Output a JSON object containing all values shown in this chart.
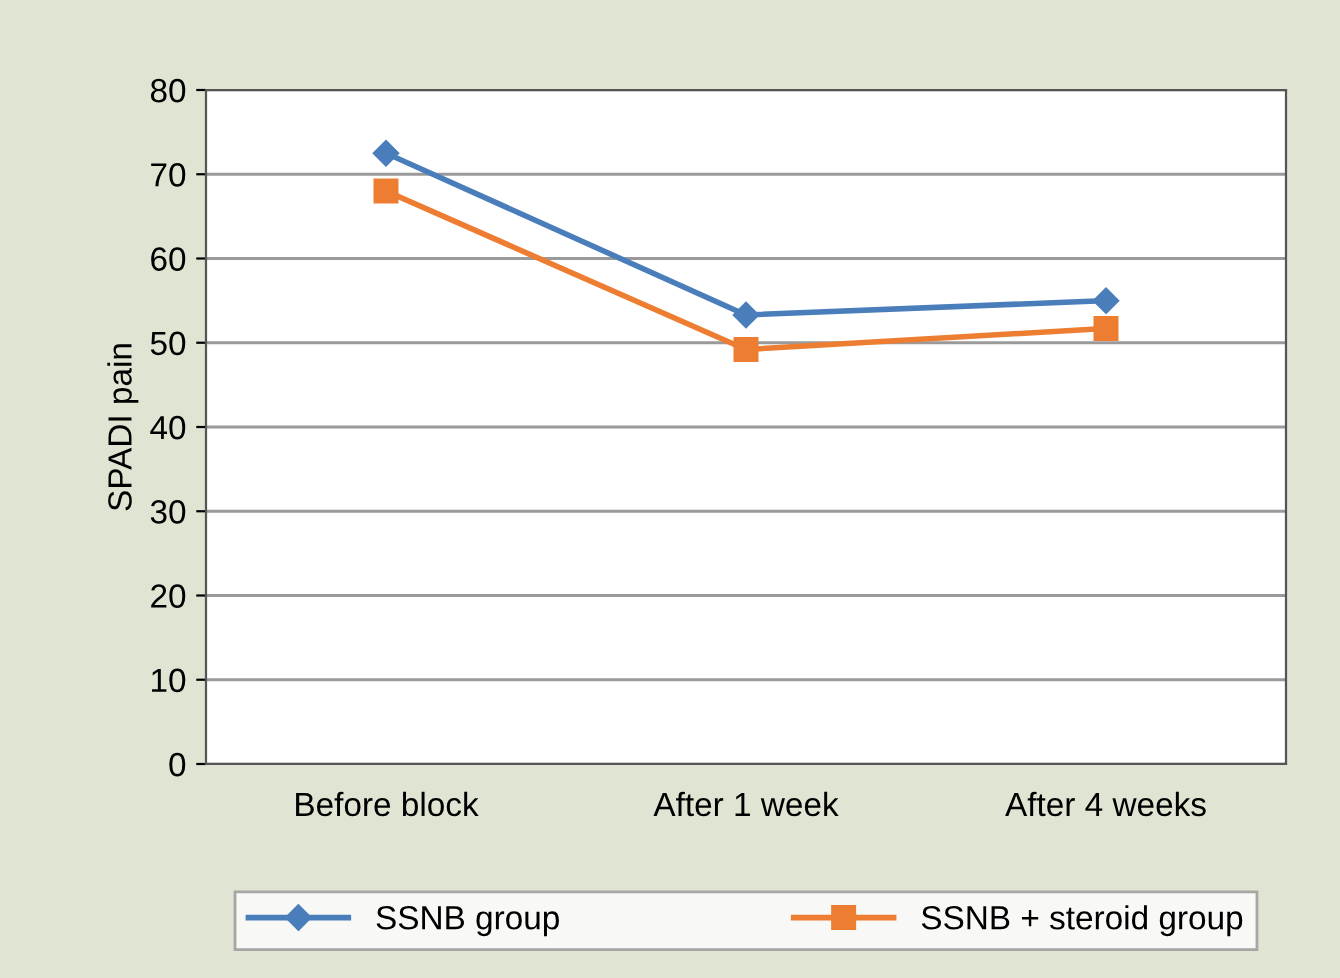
{
  "chart_data": {
    "type": "line",
    "ylabel": "SPADI pain",
    "categories": [
      "Before block",
      "After 1 week",
      "After 4 weeks"
    ],
    "series": [
      {
        "name": "SSNB group",
        "color": "#4a7ebb",
        "values": [
          72.5,
          53.3,
          55.0
        ],
        "marker": "diamond"
      },
      {
        "name": "SSNB + steroid group",
        "color": "#ed7d31",
        "values": [
          68.0,
          49.2,
          51.7
        ],
        "marker": "square"
      }
    ],
    "ylim": [
      0,
      80
    ],
    "yticks": [
      0,
      10,
      20,
      30,
      40,
      50,
      60,
      70,
      80
    ],
    "grid": "y",
    "legend": "bottom",
    "line_style": "solid"
  }
}
